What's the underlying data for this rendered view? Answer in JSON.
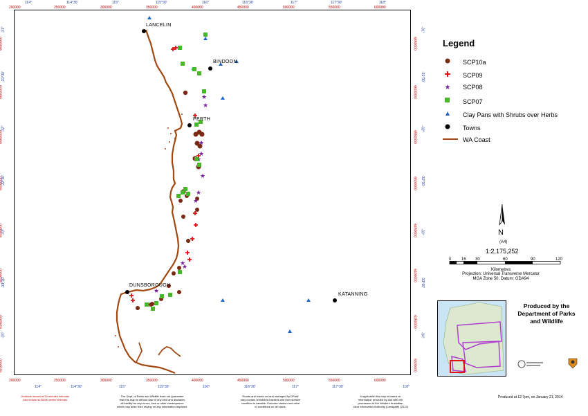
{
  "map": {
    "towns": [
      {
        "name": "LANCELIN"
      },
      {
        "name": "BINDOON"
      },
      {
        "name": "PERTH"
      },
      {
        "name": "DUNSBOROUGH"
      },
      {
        "name": "KATANNING"
      }
    ],
    "easting_ticks": [
      "200000",
      "250000",
      "300000",
      "350000",
      "400000",
      "450000",
      "500000",
      "550000",
      "600000"
    ],
    "longitude_ticks": [
      "114°",
      "114°30'",
      "115°",
      "115°30'",
      "116°",
      "116°30'",
      "117°",
      "117°30'",
      "118°"
    ],
    "northing_ticks": [
      "6650000",
      "6600000",
      "6550000",
      "6500000",
      "6450000",
      "6400000",
      "6350000",
      "6300000",
      "6250000",
      "6200000"
    ],
    "latitude_ticks": [
      "-31°",
      "-31°30'",
      "-32°",
      "-32°30'",
      "-33°",
      "-33°30'",
      "-34°"
    ]
  },
  "legend": {
    "title": "Legend",
    "items": [
      {
        "label": "SCP10a",
        "symbol": "circle",
        "color": "#7a2a12"
      },
      {
        "label": "SCP09",
        "symbol": "plus",
        "color": "#e01010"
      },
      {
        "label": "SCP08",
        "symbol": "star",
        "color": "#7a1fa0"
      },
      {
        "label": "SCP07",
        "symbol": "square",
        "color": "#46b82a"
      },
      {
        "label": "Clay Pans with Shrubs over Herbs",
        "symbol": "triangle",
        "color": "#1f66c9"
      },
      {
        "label": "Towns",
        "symbol": "dot",
        "color": "#000000"
      },
      {
        "label": "WA Coast",
        "symbol": "line",
        "color": "#a04810"
      }
    ]
  },
  "scale": {
    "paper": "(A4)",
    "ratio": "1:2,175,252",
    "ticks": [
      "0",
      "15",
      "30",
      "60",
      "90",
      "120"
    ],
    "unit": "Kilometres",
    "projection": "Projection: Universal Transverse Mercator",
    "zone": "MGA Zone 50.  Datum: GDA94"
  },
  "credits": {
    "produced_by": "Produced by the Department of Parks and Wildlife",
    "produced_at": "Produced at 12:7pm, on January 21, 2014",
    "footnote_grid": [
      "Graticule shown at 30 minutes intervals",
      "Grid shown at 50000 metre intervals"
    ],
    "footnote_dept": [
      "The Dept. of Parks and Wildlife does not guarantee",
      "that this map is without flaw of any kind and disclaims",
      "all liability for any errors, loss or other consequence",
      "which may arise from relying on any information depicted."
    ],
    "footnote_roads": [
      "Roads and tracks on land managed by DPaW",
      "may contain unmarked hazards and their surface",
      "condition is variable.  Exercise caution and drive",
      "to conditions on all roads."
    ],
    "footnote_data": [
      "If applicable this map is based on",
      "information provided by and with the",
      "permission of the Western Australian",
      "Land Information Authority (Landgate) (2013)"
    ]
  },
  "colors": {
    "coast": "#a04810",
    "grid_red": "#c00000",
    "grid_blue": "#1a3aa8",
    "inset_land": "#dce9d0",
    "inset_sea": "#c9e4f5",
    "inset_boundary": "#b03ed0",
    "inset_highlight": "#e00000"
  }
}
